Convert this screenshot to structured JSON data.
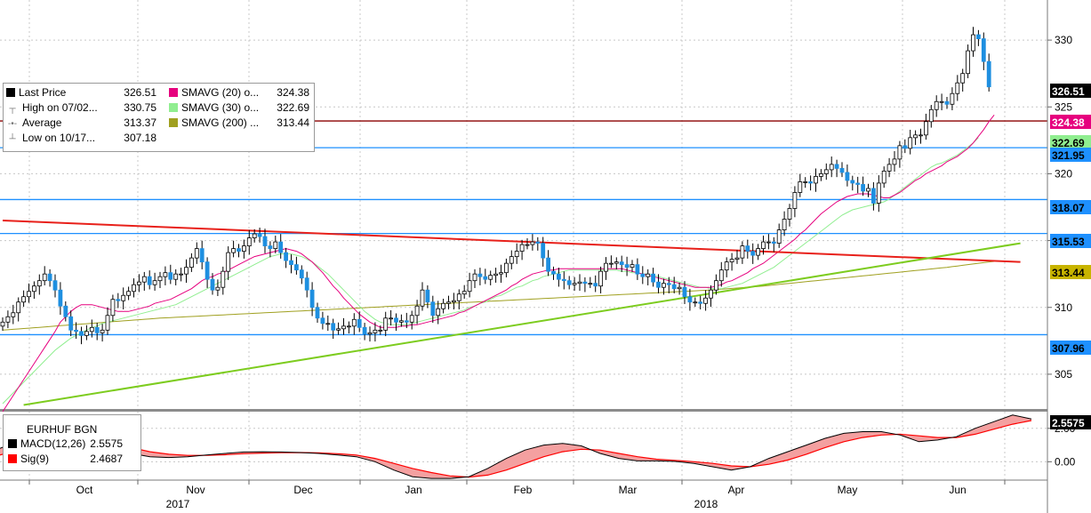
{
  "chart_data": [
    {
      "type": "candlestick",
      "title": "EURHUF BGN",
      "ylim": [
        302.4,
        333.0
      ],
      "y_ticks": [
        305,
        310,
        315,
        320,
        325,
        330
      ],
      "x_month_labels": [
        "Oct",
        "Nov",
        "Dec",
        "Jan",
        "Feb",
        "Mar",
        "Apr",
        "May",
        "Jun"
      ],
      "x_year_labels": [
        "2017",
        "2018"
      ],
      "legend": [
        {
          "label": "Last Price",
          "value": "326.51",
          "color": "#000000"
        },
        {
          "label": "High on 07/02...",
          "value": "330.75"
        },
        {
          "label": "Average",
          "value": "313.37"
        },
        {
          "label": "Low on 10/17...",
          "value": "307.18"
        },
        {
          "label": "SMAVG (20) o...",
          "value": "324.38",
          "color": "#e6007e"
        },
        {
          "label": "SMAVG (30) o...",
          "value": "322.69",
          "color": "#90ee90"
        },
        {
          "label": "SMAVG (200) ...",
          "value": "313.44",
          "color": "#a0a020"
        }
      ],
      "price_labels": [
        {
          "value": "326.51",
          "bg": "#000000",
          "fg": "#ffffff"
        },
        {
          "value": "324.38",
          "bg": "#e6007e",
          "fg": "#ffffff"
        },
        {
          "value": "322.69",
          "bg": "#90ee90",
          "fg": "#000000"
        },
        {
          "value": "321.95",
          "bg": "#1e90ff",
          "fg": "#000000"
        },
        {
          "value": "318.07",
          "bg": "#1e90ff",
          "fg": "#000000"
        },
        {
          "value": "315.53",
          "bg": "#1e90ff",
          "fg": "#000000"
        },
        {
          "value": "313.44",
          "bg": "#c8b400",
          "fg": "#000000"
        },
        {
          "value": "307.96",
          "bg": "#1e90ff",
          "fg": "#000000"
        }
      ],
      "horizontal_lines": [
        {
          "value": 323.95,
          "color": "#8b0000"
        },
        {
          "value": 321.95,
          "color": "#1e90ff"
        },
        {
          "value": 318.07,
          "color": "#1e90ff"
        },
        {
          "value": 315.53,
          "color": "#1e90ff"
        },
        {
          "value": 307.96,
          "color": "#1e90ff"
        }
      ],
      "trend_lines": [
        {
          "color": "#e8201a",
          "from": {
            "x": 0,
            "y": 316.5
          },
          "to": {
            "x": 194,
            "y": 313.4
          }
        },
        {
          "color": "#7dcc1f",
          "from": {
            "x": 4,
            "y": 302.7
          },
          "to": {
            "x": 194,
            "y": 314.8
          }
        }
      ],
      "close": [
        308.9,
        309.3,
        309.6,
        310.4,
        310.8,
        311.2,
        311.6,
        312.0,
        312.5,
        312.0,
        311.3,
        310.1,
        309.3,
        308.3,
        308.2,
        307.9,
        308.2,
        308.5,
        308.1,
        308.3,
        309.4,
        310.6,
        310.5,
        310.9,
        311.2,
        311.7,
        311.9,
        312.3,
        311.7,
        312.0,
        312.3,
        312.6,
        312.1,
        312.5,
        312.5,
        313.0,
        313.7,
        314.4,
        313.4,
        312.1,
        311.3,
        311.5,
        312.7,
        314.1,
        314.4,
        314.2,
        314.6,
        315.2,
        315.5,
        315.3,
        314.6,
        314.4,
        314.9,
        314.1,
        313.5,
        313.2,
        312.8,
        312.2,
        311.3,
        310.0,
        309.2,
        308.8,
        308.8,
        308.3,
        308.4,
        308.6,
        308.6,
        309.1,
        308.5,
        308.0,
        308.1,
        308.3,
        308.3,
        309.2,
        309.2,
        308.9,
        309.0,
        308.9,
        309.4,
        310.1,
        311.3,
        310.4,
        309.4,
        309.9,
        310.3,
        310.4,
        310.5,
        311.0,
        311.2,
        312.0,
        312.5,
        312.3,
        312.1,
        312.4,
        312.5,
        312.6,
        313.3,
        313.8,
        314.2,
        314.7,
        314.7,
        314.9,
        314.8,
        313.7,
        312.7,
        312.5,
        312.1,
        312.0,
        311.7,
        311.8,
        311.9,
        311.8,
        311.8,
        311.6,
        312.7,
        313.3,
        313.3,
        313.4,
        313.2,
        313.0,
        313.2,
        312.5,
        312.3,
        312.5,
        311.9,
        311.5,
        311.8,
        311.7,
        311.4,
        311.5,
        310.8,
        310.4,
        310.4,
        310.3,
        310.7,
        311.3,
        312.0,
        312.8,
        313.4,
        313.6,
        313.7,
        314.6,
        314.2,
        313.9,
        314.4,
        314.9,
        314.9,
        314.8,
        315.8,
        316.6,
        317.4,
        318.6,
        319.4,
        319.4,
        319.3,
        319.8,
        320.0,
        320.3,
        320.7,
        320.4,
        320.1,
        319.5,
        319.3,
        319.2,
        318.7,
        318.9,
        317.8,
        319.3,
        320.2,
        320.7,
        321.1,
        322.1,
        321.9,
        322.7,
        322.9,
        322.9,
        323.9,
        324.8,
        325.4,
        325.4,
        325.2,
        326.0,
        326.8,
        327.5,
        329.2,
        330.4,
        330.1,
        328.4,
        326.5
      ],
      "smavg_20": [
        302.2,
        302.8,
        303.4,
        304.0,
        304.6,
        305.2,
        305.8,
        306.4,
        307.0,
        307.6,
        308.2,
        308.9,
        309.3,
        309.7,
        310.0,
        310.2,
        310.2,
        310.2,
        310.1,
        310.0,
        309.9,
        309.8,
        309.7,
        309.7,
        309.7,
        309.8,
        309.9,
        310.0,
        310.1,
        310.3,
        310.4,
        310.5,
        310.6,
        310.8,
        311.0,
        311.2,
        311.4,
        311.7,
        312.0,
        312.2,
        312.3,
        312.5,
        312.6,
        312.8,
        313.0,
        313.2,
        313.4,
        313.6,
        313.8,
        313.9,
        314.0,
        314.1,
        314.2,
        314.3,
        314.4,
        314.3,
        314.2,
        314.0,
        313.7,
        313.4,
        313.0,
        312.6,
        312.1,
        311.6,
        311.2,
        310.7,
        310.3,
        309.9,
        309.5,
        309.2,
        308.9,
        308.7,
        308.5,
        308.5,
        308.5,
        308.5,
        308.6,
        308.6,
        308.7,
        308.7,
        308.8,
        308.9,
        309.0,
        309.1,
        309.2,
        309.3,
        309.4,
        309.6,
        309.7,
        309.9,
        310.1,
        310.3,
        310.5,
        310.7,
        310.9,
        311.1,
        311.3,
        311.6,
        311.8,
        312.1,
        312.3,
        312.5,
        312.6,
        312.7,
        312.8,
        312.8,
        312.9,
        312.9,
        312.9,
        312.9,
        312.9,
        312.9,
        312.9,
        312.9,
        312.9,
        312.9,
        312.9,
        312.9,
        312.9,
        312.8,
        312.7,
        312.6,
        312.5,
        312.4,
        312.3,
        312.2,
        312.1,
        312.0,
        311.9,
        311.8,
        311.7,
        311.6,
        311.5,
        311.5,
        311.5,
        311.5,
        311.6,
        311.7,
        311.9,
        312.0,
        312.2,
        312.4,
        312.6,
        312.9,
        313.1,
        313.3,
        313.6,
        313.9,
        314.2,
        314.5,
        314.8,
        315.1,
        315.5,
        315.8,
        316.2,
        316.6,
        317.0,
        317.3,
        317.6,
        317.9,
        318.1,
        318.3,
        318.4,
        318.5,
        318.5,
        318.5,
        318.4,
        318.3,
        318.2,
        318.2,
        318.4,
        318.6,
        318.9,
        319.2,
        319.5,
        319.7,
        320.0,
        320.2,
        320.4,
        320.6,
        320.9,
        321.1,
        321.3,
        321.6,
        321.9,
        322.3,
        322.8,
        323.3,
        323.9,
        324.4
      ],
      "smavg_30": [
        302.8,
        303.2,
        303.6,
        304.0,
        304.4,
        304.8,
        305.2,
        305.6,
        306.0,
        306.4,
        306.8,
        307.1,
        307.4,
        307.7,
        307.9,
        308.1,
        308.3,
        308.5,
        308.6,
        308.8,
        308.9,
        309.0,
        309.1,
        309.2,
        309.3,
        309.4,
        309.5,
        309.6,
        309.7,
        309.8,
        309.9,
        310.0,
        310.1,
        310.2,
        310.4,
        310.6,
        310.8,
        311.0,
        311.2,
        311.4,
        311.6,
        311.8,
        312.0,
        312.2,
        312.4,
        312.6,
        312.8,
        313.0,
        313.2,
        313.4,
        313.6,
        313.8,
        313.9,
        314.0,
        314.0,
        314.0,
        313.9,
        313.8,
        313.6,
        313.4,
        313.1,
        312.8,
        312.5,
        312.1,
        311.7,
        311.3,
        310.9,
        310.5,
        310.1,
        309.7,
        309.4,
        309.1,
        308.9,
        308.8,
        308.7,
        308.7,
        308.7,
        308.7,
        308.8,
        308.9,
        309.0,
        309.1,
        309.2,
        309.3,
        309.4,
        309.5,
        309.6,
        309.7,
        309.8,
        310.0,
        310.1,
        310.3,
        310.4,
        310.6,
        310.8,
        310.9,
        311.1,
        311.3,
        311.5,
        311.6,
        311.8,
        312.0,
        312.1,
        312.3,
        312.4,
        312.5,
        312.6,
        312.7,
        312.8,
        312.8,
        312.8,
        312.8,
        312.8,
        312.8,
        312.8,
        312.8,
        312.8,
        312.8,
        312.7,
        312.7,
        312.6,
        312.6,
        312.5,
        312.5,
        312.4,
        312.3,
        312.2,
        312.1,
        312.0,
        311.9,
        311.8,
        311.7,
        311.6,
        311.5,
        311.5,
        311.4,
        311.4,
        311.4,
        311.5,
        311.6,
        311.7,
        311.8,
        312.0,
        312.2,
        312.4,
        312.6,
        312.8,
        313.0,
        313.3,
        313.6,
        313.9,
        314.2,
        314.5,
        314.8,
        315.1,
        315.4,
        315.7,
        316.0,
        316.3,
        316.6,
        316.9,
        317.1,
        317.3,
        317.4,
        317.5,
        317.6,
        317.7,
        317.8,
        317.9,
        318.1,
        318.4,
        318.7,
        319.0,
        319.3,
        319.6,
        319.9,
        320.2,
        320.5,
        320.7,
        320.8,
        321.0,
        321.2,
        321.4,
        321.7,
        322.0,
        322.3,
        322.7
      ],
      "smavg_200": [
        308.3,
        308.33,
        308.36,
        308.39,
        308.42,
        308.45,
        308.48,
        308.51,
        308.54,
        308.57,
        308.6,
        308.63,
        308.66,
        308.69,
        308.72,
        308.75,
        308.78,
        308.81,
        308.84,
        308.87,
        308.9,
        308.93,
        308.96,
        308.99,
        309.02,
        309.05,
        309.08,
        309.11,
        309.14,
        309.17,
        309.2,
        309.22,
        309.24,
        309.26,
        309.28,
        309.3,
        309.32,
        309.34,
        309.36,
        309.38,
        309.4,
        309.42,
        309.44,
        309.46,
        309.48,
        309.5,
        309.52,
        309.54,
        309.56,
        309.58,
        309.6,
        309.62,
        309.64,
        309.66,
        309.68,
        309.7,
        309.72,
        309.74,
        309.76,
        309.78,
        309.8,
        309.82,
        309.84,
        309.86,
        309.88,
        309.9,
        309.92,
        309.94,
        309.96,
        309.98,
        310.0,
        310.02,
        310.04,
        310.06,
        310.08,
        310.1,
        310.12,
        310.14,
        310.16,
        310.18,
        310.2,
        310.22,
        310.24,
        310.26,
        310.28,
        310.3,
        310.32,
        310.34,
        310.36,
        310.38,
        310.4,
        310.42,
        310.44,
        310.46,
        310.48,
        310.5,
        310.52,
        310.54,
        310.56,
        310.58,
        310.6,
        310.62,
        310.64,
        310.66,
        310.68,
        310.7,
        310.72,
        310.74,
        310.76,
        310.78,
        310.8,
        310.82,
        310.84,
        310.86,
        310.88,
        310.9,
        310.92,
        310.94,
        310.96,
        310.98,
        311.0,
        311.02,
        311.04,
        311.06,
        311.08,
        311.1,
        311.12,
        311.14,
        311.16,
        311.18,
        311.2,
        311.22,
        311.24,
        311.26,
        311.28,
        311.3,
        311.33,
        311.36,
        311.39,
        311.42,
        311.45,
        311.48,
        311.51,
        311.54,
        311.57,
        311.6,
        311.64,
        311.68,
        311.72,
        311.76,
        311.8,
        311.84,
        311.88,
        311.92,
        311.96,
        312.0,
        312.04,
        312.08,
        312.12,
        312.16,
        312.2,
        312.24,
        312.28,
        312.32,
        312.36,
        312.4,
        312.44,
        312.48,
        312.52,
        312.56,
        312.6,
        312.64,
        312.68,
        312.72,
        312.76,
        312.8,
        312.84,
        312.88,
        312.92,
        312.96,
        313.0,
        313.05,
        313.1,
        313.15,
        313.2,
        313.25,
        313.3,
        313.35,
        313.4,
        313.44
      ]
    },
    {
      "type": "line",
      "title": "",
      "ylim": [
        -1.1,
        3.0
      ],
      "y_ticks": [
        0.0,
        2.0
      ],
      "y_tick_labels": [
        "0.00",
        "2.00"
      ],
      "legend": [
        {
          "label": "MACD(12,26)",
          "value": "2.5575",
          "color": "#000000"
        },
        {
          "label": "Sig(9)",
          "value": "2.4687",
          "color": "#ff0000"
        }
      ],
      "price_labels": [
        {
          "value": "2.5575",
          "bg": "#000000",
          "fg": "#ffffff"
        }
      ],
      "series": [
        {
          "name": "MACD(12,26)",
          "color": "#000000",
          "values": [
            0.8,
            1.25,
            1.55,
            1.7,
            1.6,
            1.3,
            0.9,
            0.5,
            0.3,
            0.25,
            0.3,
            0.4,
            0.5,
            0.58,
            0.6,
            0.58,
            0.55,
            0.5,
            0.4,
            0.3,
            0.0,
            -0.5,
            -0.9,
            -1.0,
            -1.0,
            -0.9,
            -0.4,
            0.2,
            0.7,
            1.0,
            1.1,
            0.95,
            0.5,
            0.2,
            0.05,
            0.05,
            0.02,
            -0.1,
            -0.3,
            -0.5,
            -0.3,
            0.2,
            0.6,
            1.0,
            1.4,
            1.7,
            1.8,
            1.8,
            1.6,
            1.2,
            1.3,
            1.5,
            2.0,
            2.4,
            2.8,
            2.56
          ]
        },
        {
          "name": "Sig(9)",
          "color": "#ff0000",
          "values": [
            0.4,
            0.7,
            1.0,
            1.3,
            1.4,
            1.3,
            1.1,
            0.85,
            0.6,
            0.45,
            0.38,
            0.38,
            0.42,
            0.48,
            0.52,
            0.54,
            0.55,
            0.53,
            0.48,
            0.4,
            0.2,
            -0.1,
            -0.4,
            -0.65,
            -0.85,
            -0.92,
            -0.8,
            -0.5,
            -0.1,
            0.3,
            0.6,
            0.75,
            0.7,
            0.5,
            0.3,
            0.15,
            0.08,
            0.0,
            -0.1,
            -0.25,
            -0.3,
            -0.15,
            0.1,
            0.45,
            0.85,
            1.2,
            1.45,
            1.6,
            1.65,
            1.55,
            1.45,
            1.45,
            1.65,
            1.95,
            2.25,
            2.47
          ]
        }
      ]
    }
  ],
  "x_axis": {
    "months": [
      "Oct",
      "Nov",
      "Dec",
      "Jan",
      "Feb",
      "Mar",
      "Apr",
      "May",
      "Jun"
    ],
    "years": [
      "2017",
      "2018"
    ]
  }
}
